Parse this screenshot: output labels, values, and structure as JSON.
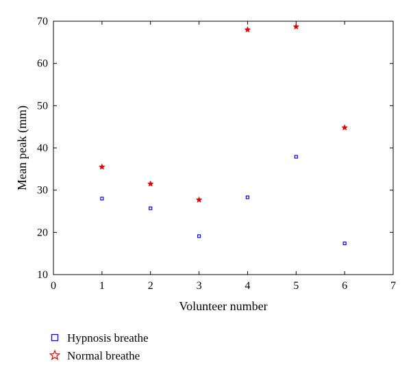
{
  "chart_data": {
    "type": "scatter",
    "title": "",
    "xlabel": "Volunteer number",
    "ylabel": "Mean peak (mm)",
    "xlim": [
      0,
      7
    ],
    "ylim": [
      10,
      70
    ],
    "xticks": [
      0,
      1,
      2,
      3,
      4,
      5,
      6,
      7
    ],
    "yticks": [
      10,
      20,
      30,
      40,
      50,
      60,
      70
    ],
    "grid": false,
    "legend_position": "bottom-left",
    "series": [
      {
        "name": "Hypnosis breathe",
        "marker": "square",
        "color": "#0000ff",
        "x": [
          1,
          2,
          3,
          4,
          5,
          6
        ],
        "y": [
          28.0,
          25.7,
          19.1,
          28.3,
          37.9,
          17.4
        ]
      },
      {
        "name": "Normal breathe",
        "marker": "star",
        "color": "#e00000",
        "x": [
          1,
          2,
          3,
          4,
          5,
          6
        ],
        "y": [
          35.5,
          31.5,
          27.7,
          68.0,
          68.7,
          44.8
        ]
      }
    ]
  }
}
